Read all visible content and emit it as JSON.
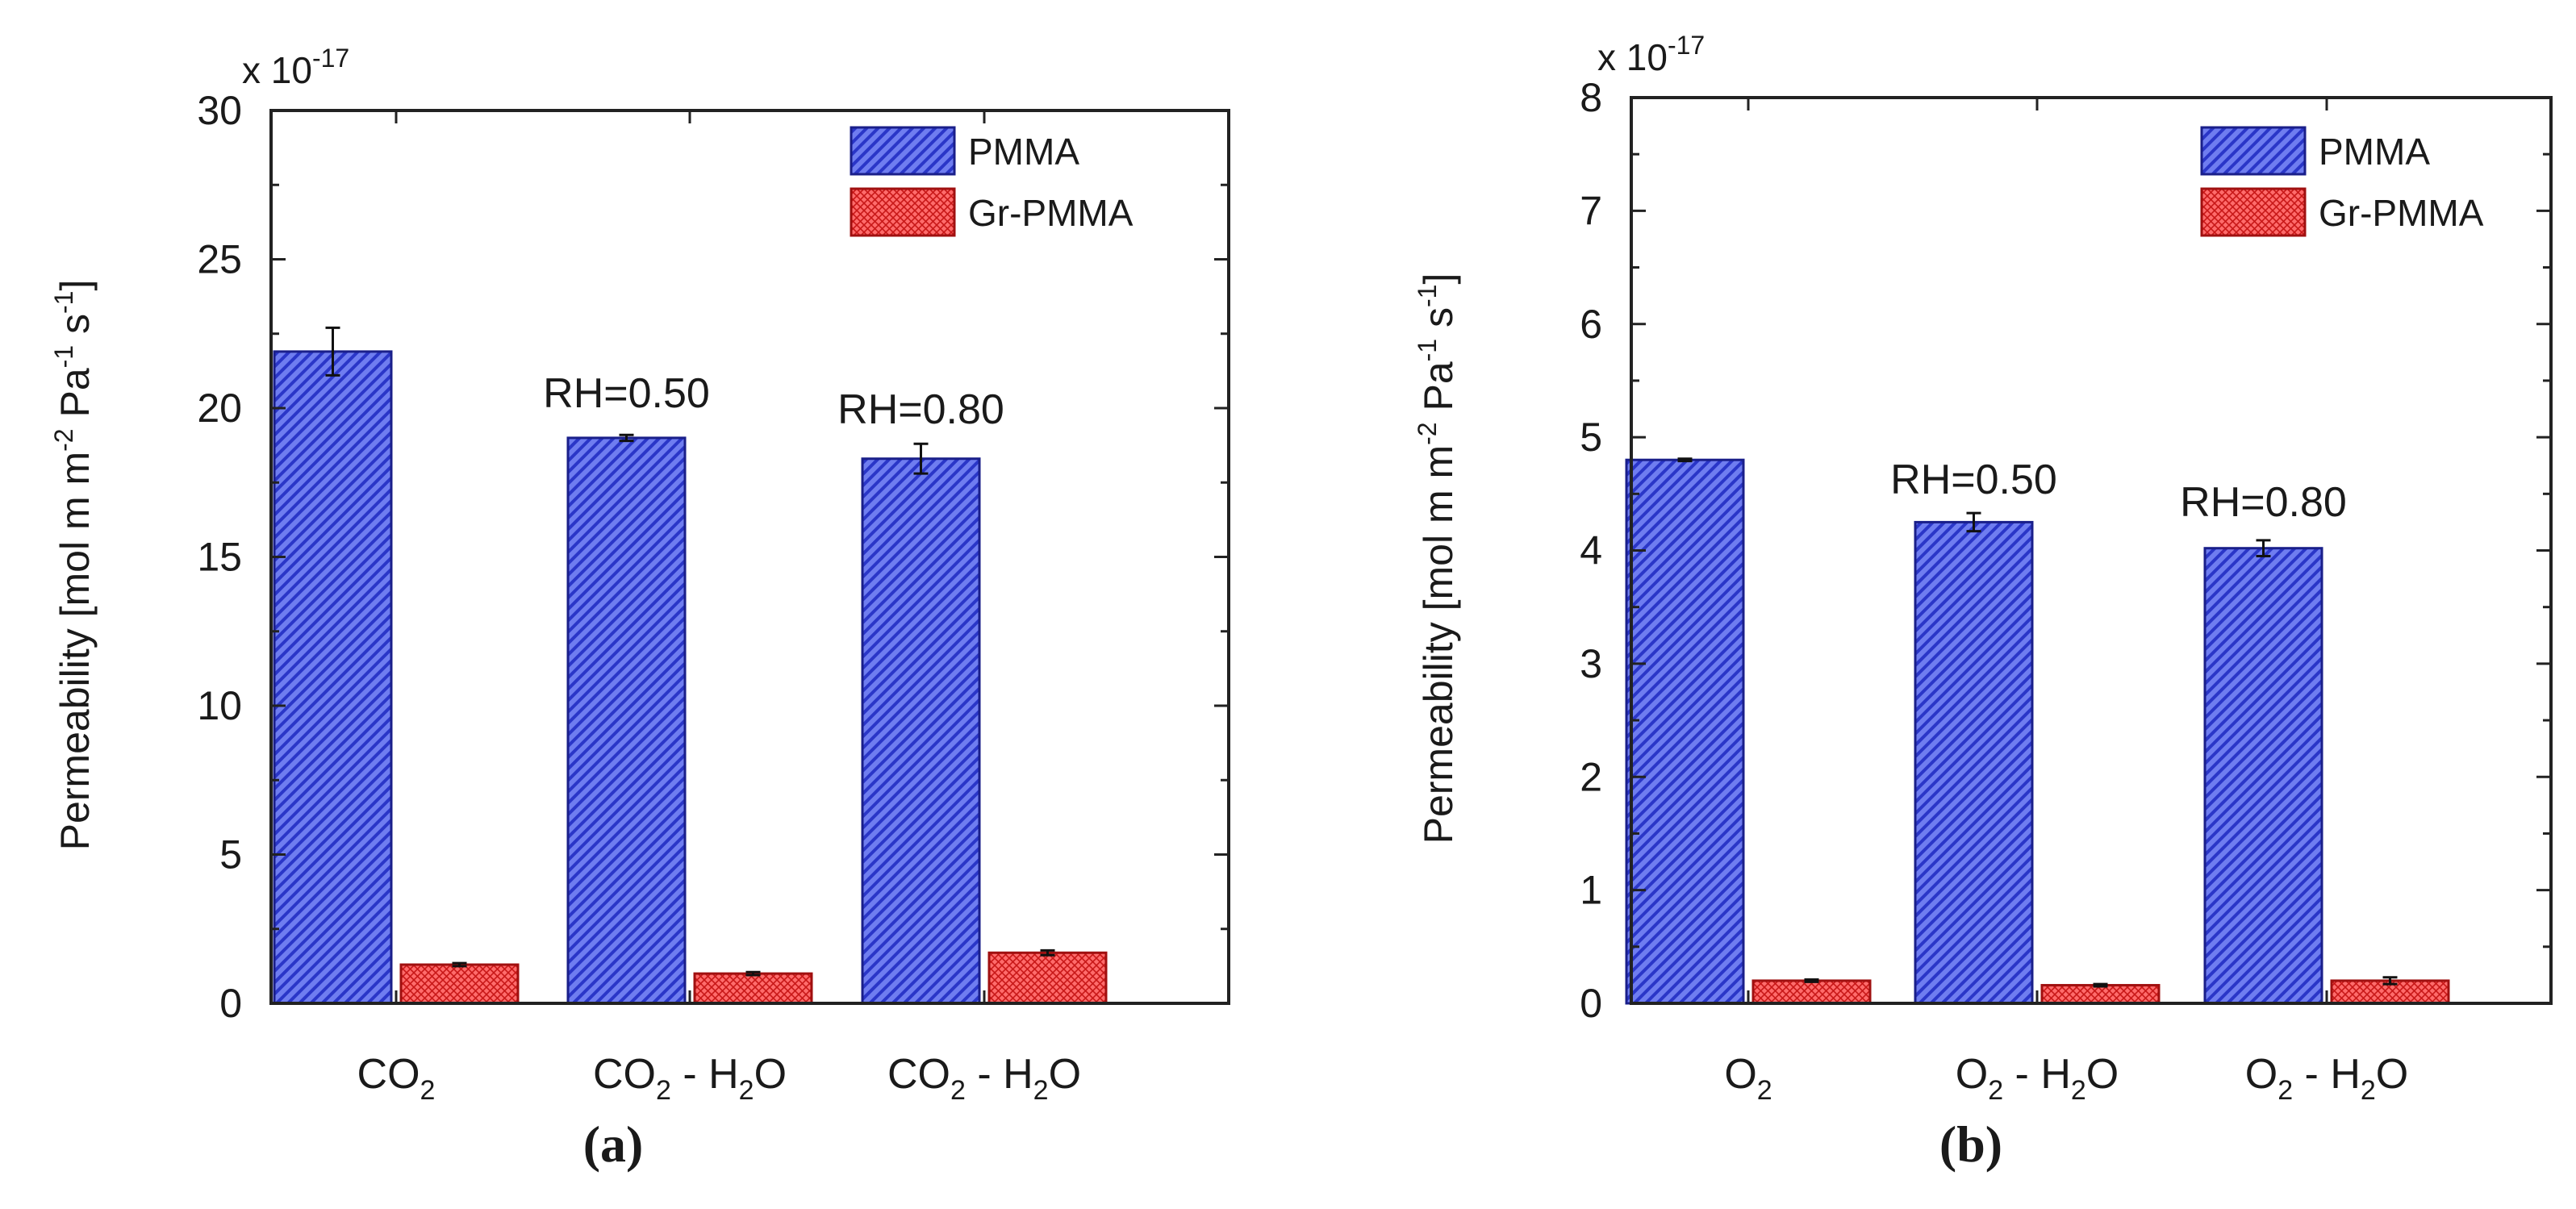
{
  "colors": {
    "pmma_fill": "#6f7df0",
    "pmma_stripe": "#2a36c8",
    "pmma_stroke": "#1a1f8a",
    "gr_fill": "#ff6b6b",
    "gr_grid": "#c81818",
    "gr_stroke": "#a01010"
  },
  "chart_data": [
    {
      "type": "bar",
      "panel_label": "(a)",
      "exponent_label": "x 10",
      "exponent_power": "-17",
      "ylabel_parts": [
        "Permeability [mol m m",
        "-2",
        " Pa",
        "-1",
        " s",
        "-1",
        "]"
      ],
      "ylim": [
        0,
        30
      ],
      "yticks": [
        0,
        5,
        10,
        15,
        20,
        25,
        30
      ],
      "categories": [
        {
          "parts": [
            {
              "t": "CO"
            },
            {
              "t": "2",
              "sub": true
            }
          ]
        },
        {
          "parts": [
            {
              "t": "CO"
            },
            {
              "t": "2",
              "sub": true
            },
            {
              "t": " - H"
            },
            {
              "t": "2",
              "sub": true
            },
            {
              "t": "O"
            }
          ]
        },
        {
          "parts": [
            {
              "t": "CO"
            },
            {
              "t": "2",
              "sub": true
            },
            {
              "t": " - H"
            },
            {
              "t": "2",
              "sub": true
            },
            {
              "t": "O"
            }
          ]
        }
      ],
      "series": [
        {
          "name": "PMMA",
          "values": [
            21.9,
            19.0,
            18.3
          ],
          "errors": [
            0.8,
            0.1,
            0.5
          ]
        },
        {
          "name": "Gr-PMMA",
          "values": [
            1.3,
            1.0,
            1.7
          ],
          "errors": [
            0.05,
            0.05,
            0.08
          ]
        }
      ],
      "annotations": [
        {
          "category": 1,
          "text": "RH=0.50"
        },
        {
          "category": 2,
          "text": "RH=0.80"
        }
      ],
      "legend_position": "top-right"
    },
    {
      "type": "bar",
      "panel_label": "(b)",
      "exponent_label": "x 10",
      "exponent_power": "-17",
      "ylabel_parts": [
        "Permeability [mol m m",
        "-2",
        " Pa",
        "-1",
        " s",
        "-1",
        "]"
      ],
      "ylim": [
        0,
        8
      ],
      "yticks": [
        0,
        1,
        2,
        3,
        4,
        5,
        6,
        7,
        8
      ],
      "categories": [
        {
          "parts": [
            {
              "t": "O"
            },
            {
              "t": "2",
              "sub": true
            }
          ]
        },
        {
          "parts": [
            {
              "t": "O"
            },
            {
              "t": "2",
              "sub": true
            },
            {
              "t": " - H"
            },
            {
              "t": "2",
              "sub": true
            },
            {
              "t": "O"
            }
          ]
        },
        {
          "parts": [
            {
              "t": "O"
            },
            {
              "t": "2",
              "sub": true
            },
            {
              "t": " - H"
            },
            {
              "t": "2",
              "sub": true
            },
            {
              "t": "O"
            }
          ]
        }
      ],
      "series": [
        {
          "name": "PMMA",
          "values": [
            4.8,
            4.25,
            4.02
          ],
          "errors": [
            0.01,
            0.08,
            0.07
          ]
        },
        {
          "name": "Gr-PMMA",
          "values": [
            0.2,
            0.16,
            0.2
          ],
          "errors": [
            0.01,
            0.01,
            0.03
          ]
        }
      ],
      "annotations": [
        {
          "category": 1,
          "text": "RH=0.50"
        },
        {
          "category": 2,
          "text": "RH=0.80"
        }
      ],
      "legend_position": "top-right"
    }
  ]
}
